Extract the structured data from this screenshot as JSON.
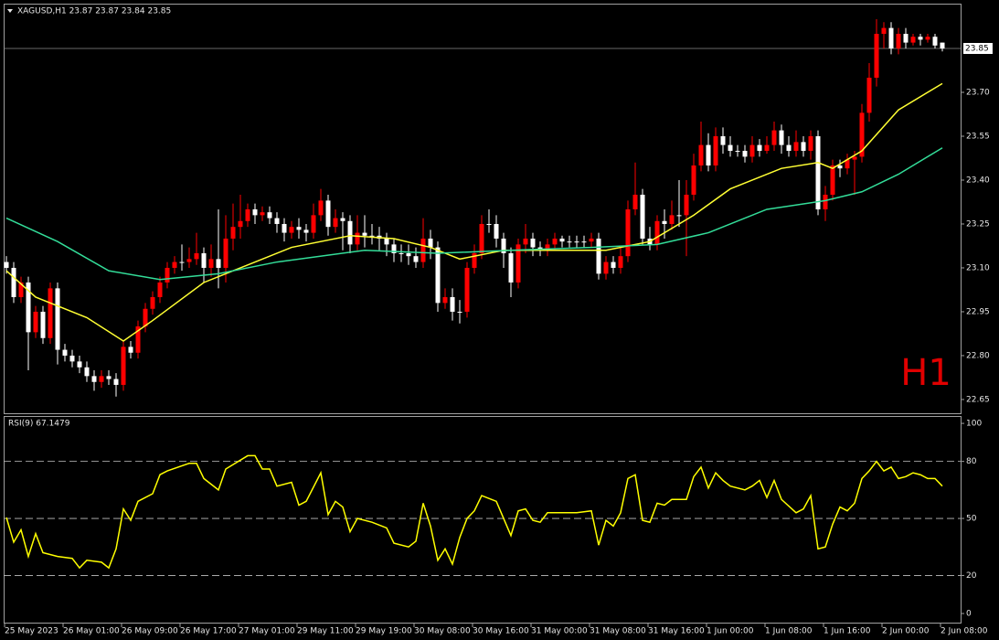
{
  "chart_data": [
    {
      "type": "candlestick",
      "title": "XAGUSD,H1  23.87 23.87 23.84 23.85",
      "annotation": "H1",
      "last_price": 23.85,
      "up_color": "#ff0000",
      "down_color": "#ffffff",
      "grid": false,
      "ylim": [
        22.603,
        24.0
      ],
      "yticks": [
        {
          "value": 23.7,
          "label": "23.70"
        },
        23.55,
        {
          "value": 23.4,
          "label": "23.40"
        },
        23.25,
        {
          "value": 23.1,
          "label": "23.10"
        },
        22.95,
        {
          "value": 22.8,
          "label": "22.80"
        },
        22.65
      ],
      "categories": [
        "25 May 2023",
        null,
        null,
        null,
        null,
        null,
        null,
        null,
        "26 May 01:00",
        null,
        null,
        null,
        null,
        null,
        null,
        null,
        "26 May 09:00",
        null,
        null,
        null,
        null,
        null,
        null,
        null,
        "26 May 17:00",
        null,
        null,
        null,
        null,
        null,
        null,
        null,
        "27 May 01:00",
        null,
        null,
        null,
        null,
        null,
        null,
        null,
        "29 May 11:00",
        null,
        null,
        null,
        null,
        null,
        null,
        null,
        "29 May 19:00",
        null,
        null,
        null,
        null,
        null,
        null,
        null,
        "30 May 08:00",
        null,
        null,
        null,
        null,
        null,
        null,
        null,
        "30 May 16:00",
        null,
        null,
        null,
        null,
        null,
        null,
        null,
        "31 May 00:00",
        null,
        null,
        null,
        null,
        null,
        null,
        null,
        "31 May 08:00",
        null,
        null,
        null,
        null,
        null,
        null,
        null,
        "31 May 16:00",
        null,
        null,
        null,
        null,
        null,
        null,
        null,
        "1 Jun 00:00",
        null,
        null,
        null,
        null,
        null,
        null,
        null,
        "1 Jun 08:00",
        null,
        null,
        null,
        null,
        null,
        null,
        null,
        "1 Jun 16:00",
        null,
        null,
        null,
        null,
        null,
        null,
        null,
        "2 Jun 00:00",
        null,
        null,
        null,
        null,
        null,
        null,
        null,
        "2 Jun 08:00"
      ],
      "open": [
        23.12,
        23.1,
        23.0,
        23.05,
        22.88,
        22.95,
        22.86,
        23.03,
        22.82,
        22.8,
        22.78,
        22.76,
        22.73,
        22.71,
        22.73,
        22.72,
        22.7,
        22.83,
        22.81,
        22.9,
        22.96,
        23.0,
        23.05,
        23.1,
        23.12,
        23.12,
        23.13,
        23.15,
        23.1,
        23.13,
        23.1,
        23.2,
        23.24,
        23.26,
        23.3,
        23.28,
        23.29,
        23.27,
        23.25,
        23.22,
        23.24,
        23.23,
        23.22,
        23.28,
        23.33,
        23.24,
        23.27,
        23.26,
        23.18,
        23.22,
        23.21,
        23.21,
        23.2,
        23.18,
        23.15,
        23.15,
        23.14,
        23.12,
        23.2,
        23.17,
        22.98,
        23.0,
        22.95,
        22.95,
        23.1,
        23.15,
        23.25,
        23.25,
        23.2,
        23.15,
        23.05,
        23.18,
        23.2,
        23.17,
        23.16,
        23.18,
        23.2,
        23.19,
        23.19,
        23.19,
        23.19,
        23.2,
        23.08,
        23.12,
        23.1,
        23.14,
        23.3,
        23.35,
        23.2,
        23.18,
        23.26,
        23.25,
        23.28,
        23.28,
        23.35,
        23.45,
        23.52,
        23.45,
        23.55,
        23.52,
        23.5,
        23.5,
        23.48,
        23.52,
        23.5,
        23.52,
        23.57,
        23.52,
        23.5,
        23.53,
        23.5,
        23.55,
        23.3,
        23.35,
        23.45,
        23.44,
        23.47,
        23.48,
        23.63,
        23.75,
        23.9,
        23.92,
        23.85,
        23.9,
        23.87,
        23.89,
        23.88,
        23.89,
        23.87
      ],
      "high": [
        23.14,
        23.12,
        23.07,
        23.07,
        22.97,
        22.97,
        23.05,
        23.05,
        22.84,
        22.82,
        22.8,
        22.78,
        22.75,
        22.75,
        22.75,
        22.74,
        22.85,
        22.85,
        22.92,
        22.98,
        23.02,
        23.07,
        23.12,
        23.14,
        23.18,
        23.17,
        23.22,
        23.17,
        23.18,
        23.3,
        23.28,
        23.32,
        23.35,
        23.32,
        23.32,
        23.31,
        23.31,
        23.29,
        23.27,
        23.26,
        23.27,
        23.25,
        23.32,
        23.37,
        23.35,
        23.3,
        23.29,
        23.28,
        23.28,
        23.28,
        23.25,
        23.24,
        23.22,
        23.2,
        23.18,
        23.18,
        23.17,
        23.27,
        23.23,
        23.19,
        23.03,
        23.03,
        22.99,
        23.12,
        23.18,
        23.28,
        23.3,
        23.28,
        23.22,
        23.17,
        23.2,
        23.25,
        23.22,
        23.19,
        23.2,
        23.22,
        23.21,
        23.21,
        23.21,
        23.21,
        23.22,
        23.22,
        23.14,
        23.14,
        23.17,
        23.33,
        23.46,
        23.37,
        23.24,
        23.28,
        23.3,
        23.33,
        23.4,
        23.4,
        23.49,
        23.6,
        23.56,
        23.58,
        23.58,
        23.55,
        23.52,
        23.52,
        23.55,
        23.54,
        23.55,
        23.6,
        23.59,
        23.55,
        23.57,
        23.55,
        23.57,
        23.57,
        23.38,
        23.47,
        23.47,
        23.49,
        23.5,
        23.66,
        23.8,
        23.95,
        23.94,
        23.94,
        23.92,
        23.92,
        23.9,
        23.9,
        23.9,
        23.9,
        23.87
      ],
      "low": [
        23.08,
        22.98,
        22.98,
        22.75,
        22.86,
        22.84,
        22.84,
        22.77,
        22.78,
        22.76,
        22.74,
        22.71,
        22.68,
        22.69,
        22.7,
        22.66,
        22.68,
        22.79,
        22.79,
        22.88,
        22.94,
        22.98,
        23.03,
        23.08,
        23.09,
        23.1,
        23.11,
        23.05,
        23.07,
        23.03,
        23.05,
        23.16,
        23.2,
        23.24,
        23.25,
        23.26,
        23.25,
        23.22,
        23.19,
        23.2,
        23.2,
        23.19,
        23.2,
        23.26,
        23.21,
        23.22,
        23.16,
        23.15,
        23.16,
        23.17,
        23.18,
        23.16,
        23.14,
        23.12,
        23.12,
        23.11,
        23.1,
        23.1,
        23.13,
        22.95,
        22.96,
        22.92,
        22.91,
        22.93,
        23.08,
        23.13,
        23.22,
        23.17,
        23.1,
        23.0,
        23.03,
        23.15,
        23.14,
        23.14,
        23.14,
        23.16,
        23.17,
        23.17,
        23.17,
        23.17,
        23.17,
        23.06,
        23.06,
        23.08,
        23.08,
        23.12,
        23.28,
        23.18,
        23.16,
        23.16,
        23.2,
        23.23,
        23.24,
        23.14,
        23.33,
        23.43,
        23.43,
        23.43,
        23.49,
        23.48,
        23.48,
        23.46,
        23.46,
        23.48,
        23.49,
        23.5,
        23.49,
        23.48,
        23.48,
        23.48,
        23.47,
        23.28,
        23.26,
        23.33,
        23.41,
        23.42,
        23.35,
        23.46,
        23.6,
        23.72,
        23.85,
        23.83,
        23.83,
        23.85,
        23.86,
        23.86,
        23.87,
        23.85,
        23.84
      ],
      "close": [
        23.1,
        23.0,
        23.05,
        22.88,
        22.95,
        22.86,
        23.03,
        22.82,
        22.8,
        22.78,
        22.76,
        22.73,
        22.71,
        22.73,
        22.72,
        22.7,
        22.83,
        22.81,
        22.9,
        22.96,
        23.0,
        23.05,
        23.1,
        23.12,
        23.12,
        23.13,
        23.15,
        23.1,
        23.13,
        23.1,
        23.2,
        23.24,
        23.26,
        23.3,
        23.28,
        23.29,
        23.27,
        23.25,
        23.22,
        23.24,
        23.23,
        23.22,
        23.28,
        23.33,
        23.24,
        23.27,
        23.26,
        23.18,
        23.22,
        23.21,
        23.21,
        23.2,
        23.18,
        23.15,
        23.15,
        23.14,
        23.12,
        23.2,
        23.17,
        22.98,
        23.0,
        22.95,
        22.95,
        23.1,
        23.15,
        23.25,
        23.25,
        23.2,
        23.15,
        23.05,
        23.18,
        23.2,
        23.17,
        23.16,
        23.18,
        23.2,
        23.19,
        23.19,
        23.19,
        23.19,
        23.2,
        23.08,
        23.12,
        23.1,
        23.14,
        23.3,
        23.35,
        23.2,
        23.18,
        23.26,
        23.25,
        23.28,
        23.28,
        23.35,
        23.45,
        23.52,
        23.45,
        23.55,
        23.52,
        23.5,
        23.5,
        23.48,
        23.52,
        23.5,
        23.52,
        23.57,
        23.52,
        23.5,
        23.53,
        23.5,
        23.55,
        23.3,
        23.35,
        23.45,
        23.44,
        23.47,
        23.48,
        23.63,
        23.75,
        23.9,
        23.92,
        23.85,
        23.9,
        23.87,
        23.89,
        23.88,
        23.89,
        23.86,
        23.85
      ],
      "series": [
        {
          "color": "#ffff33",
          "x": [
            0,
            4,
            11,
            16,
            20,
            27,
            33,
            39,
            47,
            53,
            58,
            62,
            68,
            76,
            82,
            88,
            94,
            99,
            106,
            111,
            113,
            117,
            122,
            128
          ],
          "values": [
            23.09,
            23.0,
            22.93,
            22.85,
            22.92,
            23.05,
            23.11,
            23.17,
            23.21,
            23.2,
            23.17,
            23.13,
            23.16,
            23.16,
            23.16,
            23.19,
            23.28,
            23.37,
            23.44,
            23.46,
            23.44,
            23.5,
            23.64,
            23.73
          ]
        },
        {
          "color": "#33dd99",
          "x": [
            0,
            7,
            14,
            21,
            29,
            37,
            49,
            59,
            69,
            80,
            89,
            96,
            104,
            112,
            117,
            122,
            128
          ],
          "values": [
            23.27,
            23.19,
            23.09,
            23.06,
            23.08,
            23.12,
            23.16,
            23.15,
            23.16,
            23.17,
            23.18,
            23.22,
            23.3,
            23.33,
            23.36,
            23.42,
            23.51
          ]
        }
      ]
    },
    {
      "type": "line",
      "title": "RSI(9) 67.1479",
      "ylim": [
        -4.8,
        103.4
      ],
      "yticks": [
        0,
        20,
        50,
        80,
        100
      ],
      "levels": [
        20,
        50,
        80
      ],
      "series": [
        {
          "color": "#ffff00",
          "x": [
            0,
            1,
            2,
            3,
            4,
            5,
            7,
            9,
            10,
            11,
            13,
            14,
            15,
            16,
            17,
            18,
            20,
            21,
            22,
            25,
            26,
            27,
            29,
            30,
            33,
            34,
            35,
            36,
            37,
            39,
            40,
            41,
            43,
            44,
            45,
            46,
            47,
            48,
            50,
            52,
            53,
            55,
            56,
            57,
            58,
            59,
            60,
            61,
            62,
            63,
            64,
            65,
            67,
            68,
            69,
            70,
            71,
            72,
            73,
            74,
            78,
            80,
            81,
            82,
            83,
            84,
            85,
            86,
            87,
            88,
            89,
            90,
            91,
            93,
            94,
            95,
            96,
            97,
            98,
            99,
            101,
            102,
            103,
            104,
            105,
            106,
            108,
            109,
            110,
            111,
            112,
            113,
            114,
            115,
            116,
            117,
            118,
            119,
            120,
            121,
            122,
            123,
            124,
            125,
            126,
            127,
            128
          ],
          "values": [
            50.5,
            37.5,
            44,
            30,
            42,
            32,
            30,
            29,
            24,
            28,
            27,
            24,
            34,
            55,
            49,
            59,
            63,
            73,
            75,
            79,
            79,
            71,
            65,
            76,
            83,
            83,
            76,
            76,
            67,
            69,
            57,
            59,
            74,
            52,
            59,
            56,
            43,
            50,
            48,
            45,
            37,
            35,
            38,
            58,
            46,
            28,
            34,
            26,
            40,
            50,
            54,
            62,
            59,
            50,
            41,
            54,
            55,
            49,
            48,
            53,
            53,
            54,
            36,
            49,
            46,
            53,
            71,
            73,
            49,
            48,
            58,
            57,
            60,
            60,
            72,
            77,
            66,
            74,
            70,
            67,
            65,
            67,
            70,
            61,
            70,
            60,
            53,
            55,
            62,
            34,
            35,
            47,
            56,
            54,
            58,
            71,
            75,
            80,
            75,
            77,
            71,
            72,
            74,
            73,
            71,
            71,
            67
          ]
        }
      ]
    }
  ]
}
